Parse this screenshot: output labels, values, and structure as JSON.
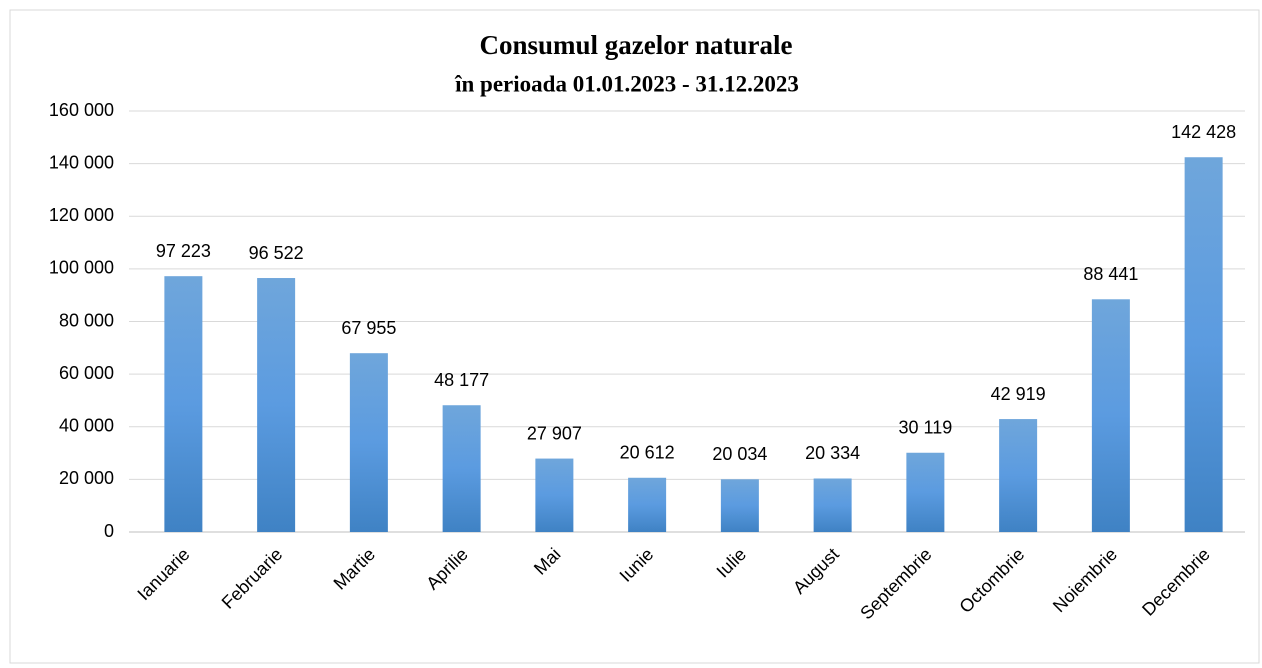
{
  "chart_data": {
    "type": "bar",
    "title": [
      "Consumul gazelor naturale",
      "în perioada 01.01.2023 - 31.12.2023"
    ],
    "categories": [
      "Ianuarie",
      "Februarie",
      "Martie",
      "Aprilie",
      "Mai",
      "Iunie",
      "Iulie",
      "August",
      "Septembrie",
      "Octombrie",
      "Noiembrie",
      "Decembrie"
    ],
    "values": [
      97223,
      96522,
      67955,
      48177,
      27907,
      20612,
      20034,
      20334,
      30119,
      42919,
      88441,
      142428
    ],
    "value_labels": [
      "97 223",
      "96 522",
      "67 955",
      "48 177",
      "27 907",
      "20 612",
      "20 034",
      "20 334",
      "30 119",
      "42 919",
      "88 441",
      "142 428"
    ],
    "color": "#5b9bd5",
    "ylim": [
      0,
      160000
    ],
    "yticks": [
      {
        "value": 0,
        "label": "0"
      },
      {
        "value": 20000,
        "label": "20 000"
      },
      {
        "value": 40000,
        "label": "40 000"
      },
      {
        "value": 60000,
        "label": "60 000"
      },
      {
        "value": 80000,
        "label": "80 000"
      },
      {
        "value": 100000,
        "label": "100 000"
      },
      {
        "value": 120000,
        "label": "120 000"
      },
      {
        "value": 140000,
        "label": "140 000"
      },
      {
        "value": 160000,
        "label": "160 000"
      }
    ],
    "grid": true
  }
}
